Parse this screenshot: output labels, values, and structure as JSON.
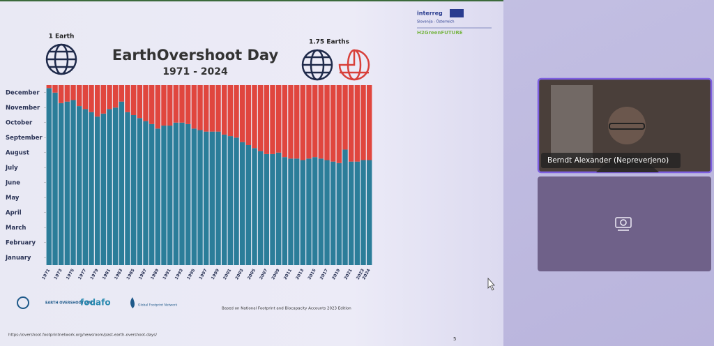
{
  "chart_data": {
    "type": "bar",
    "stacked": true,
    "title": "EarthOvershoot Day",
    "subtitle": "1971 - 2024",
    "categories": [
      "1971",
      null,
      "1973",
      null,
      "1975",
      null,
      "1977",
      null,
      "1979",
      null,
      "1981",
      null,
      "1983",
      null,
      "1985",
      null,
      "1987",
      null,
      "1989",
      null,
      "1991",
      null,
      "1993",
      null,
      "1995",
      null,
      "1997",
      null,
      "1999",
      null,
      "2001",
      null,
      "2003",
      null,
      "2005",
      null,
      "2007",
      null,
      "2009",
      null,
      "2011",
      null,
      "2013",
      null,
      "2015",
      null,
      "2017",
      null,
      "2019",
      null,
      "2021",
      null,
      "2023",
      "2024"
    ],
    "series": [
      {
        "color": "#2b7d99",
        "values": [
          11.8,
          11.5,
          10.8,
          10.9,
          11.0,
          10.6,
          10.4,
          10.2,
          9.9,
          10.1,
          10.4,
          10.5,
          10.9,
          10.2,
          10.0,
          9.8,
          9.6,
          9.4,
          9.1,
          9.3,
          9.3,
          9.5,
          9.5,
          9.4,
          9.1,
          9.0,
          8.9,
          8.9,
          8.9,
          8.7,
          8.6,
          8.5,
          8.2,
          8.0,
          7.8,
          7.6,
          7.4,
          7.4,
          7.5,
          7.2,
          7.1,
          7.1,
          7.0,
          7.1,
          7.2,
          7.1,
          7.0,
          6.9,
          6.8,
          7.7,
          6.9,
          6.9,
          7.0,
          7.0
        ]
      },
      {
        "color": "#e0463e",
        "values": [
          0.2,
          0.5,
          1.2,
          1.1,
          1.0,
          1.4,
          1.6,
          1.8,
          2.1,
          1.9,
          1.6,
          1.5,
          1.1,
          1.8,
          2.0,
          2.2,
          2.4,
          2.6,
          2.9,
          2.7,
          2.7,
          2.5,
          2.5,
          2.6,
          2.9,
          3.0,
          3.1,
          3.1,
          3.1,
          3.3,
          3.4,
          3.5,
          3.8,
          4.0,
          4.2,
          4.4,
          4.6,
          4.6,
          4.5,
          4.8,
          4.9,
          4.9,
          5.0,
          4.9,
          4.8,
          4.9,
          5.0,
          5.1,
          5.2,
          4.3,
          5.1,
          5.1,
          5.0,
          5.0
        ]
      }
    ],
    "ylim": [
      0,
      12
    ],
    "yticks": [
      {
        "value": 0.5,
        "label": "January"
      },
      {
        "value": 1.5,
        "label": "February"
      },
      {
        "value": 2.5,
        "label": "March"
      },
      {
        "value": 3.5,
        "label": "April"
      },
      {
        "value": 4.5,
        "label": "May"
      },
      {
        "value": 5.5,
        "label": "June"
      },
      {
        "value": 6.5,
        "label": "July"
      },
      {
        "value": 7.5,
        "label": "August"
      },
      {
        "value": 8.5,
        "label": "September"
      },
      {
        "value": 9.5,
        "label": "October"
      },
      {
        "value": 10.5,
        "label": "November"
      },
      {
        "value": 11.5,
        "label": "December"
      }
    ],
    "grid": false
  },
  "slide": {
    "left_caption": "1 Earth",
    "right_caption": "1.75 Earths",
    "interreg": "interreg",
    "region": "Slovenija - Österreich",
    "project": "H2GreenFUTURE",
    "logo_overshoot": "EARTH OVERSHOOT DAY",
    "logo_fodafo": "fodafo",
    "logo_gfn": "Global Footprint Network",
    "source": "Based on National Footprint and Biocapacity Accounts 2023 Edition",
    "url": "https://overshoot.footprintnetwork.org/newsroom/past-earth-overshoot-days/",
    "page": "5"
  },
  "call": {
    "participant": "Berndt Alexander (Nepreverjeno)"
  }
}
